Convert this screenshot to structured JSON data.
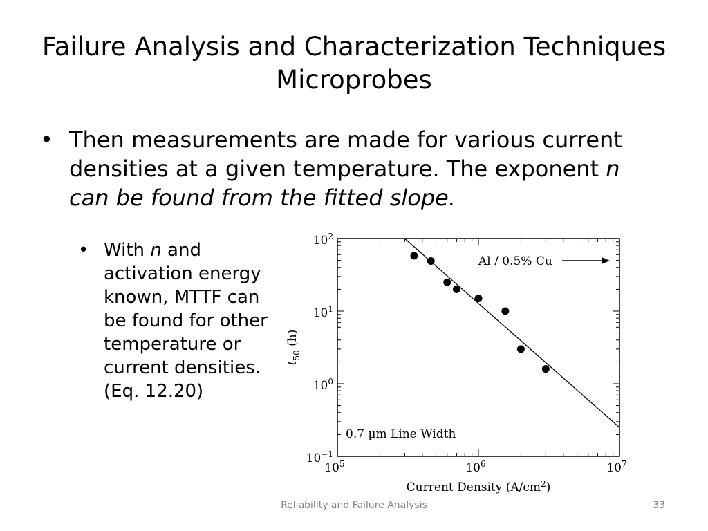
{
  "slide": {
    "title_line1": "Failure Analysis and Characterization Techniques",
    "title_line2": "Microprobes",
    "bullet1": {
      "bullet": "•",
      "text_plain": "Then measurements are made for various current densities at a given temperature. The exponent ",
      "text_italic": "n can be found from the fitted slope."
    },
    "bullet2": {
      "bullet": "•",
      "text_pre": "With ",
      "text_italic": "n",
      "text_post": " and activation energy known, MTTF can be found for other temperature or current densities. (Eq. 12.20)"
    },
    "footer": "Reliability and Failure Analysis",
    "page_number": "33"
  },
  "chart_data": {
    "type": "scatter",
    "xscale": "log",
    "yscale": "log",
    "xlim": [
      100000,
      10000000
    ],
    "ylim": [
      0.1,
      100
    ],
    "x_ticks": [
      {
        "base": "10",
        "exp": "5"
      },
      {
        "base": "10",
        "exp": "6"
      },
      {
        "base": "10",
        "exp": "7"
      }
    ],
    "y_ticks": [
      {
        "base": "10",
        "exp": "−1"
      },
      {
        "base": "10",
        "exp": "0"
      },
      {
        "base": "10",
        "exp": "1"
      },
      {
        "base": "10",
        "exp": "2"
      }
    ],
    "xlabel": {
      "text": "Current Density (A/cm",
      "sup": "2",
      "end": ")"
    },
    "ylabel": {
      "t": "t",
      "sub": "50",
      "rest": " (h)"
    },
    "series": [
      {
        "points": [
          {
            "x": 350000,
            "y": 58
          },
          {
            "x": 460000,
            "y": 49
          },
          {
            "x": 600000,
            "y": 25
          },
          {
            "x": 700000,
            "y": 20
          },
          {
            "x": 1000000,
            "y": 15
          },
          {
            "x": 1550000,
            "y": 10
          },
          {
            "x": 2000000,
            "y": 3.0
          },
          {
            "x": 3000000,
            "y": 1.6
          }
        ]
      }
    ],
    "fit_line": [
      {
        "x": 300000,
        "y": 100
      },
      {
        "x": 10000000,
        "y": 0.25
      }
    ],
    "annotations": {
      "material": "Al / 0.5% Cu",
      "line_width": "0.7 µm Line Width"
    },
    "grid": false,
    "colors": {
      "axis": "#000000",
      "marker": "#000000"
    }
  }
}
